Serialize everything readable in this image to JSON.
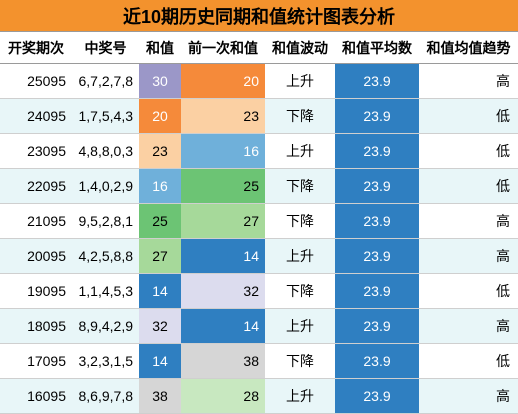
{
  "title": "近10期历史同期和值统计图表分析",
  "headers": [
    "开奖期次",
    "中奖号",
    "和值",
    "前一次和值",
    "和值波动",
    "和值平均数",
    "和值均值趋势"
  ],
  "colors": {
    "title_bg": "#f3922d",
    "avg_bg": "#2f7fc1",
    "stripe_bg": "#e8f6f8"
  },
  "rows": [
    {
      "period": "25095",
      "numbers": "6,7,2,7,8",
      "sum": "30",
      "sum_bg": "#9b97c8",
      "sum_fg": "#ffffff",
      "prev": "20",
      "prev_bg": "#f58a3a",
      "prev_fg": "#ffffff",
      "trend": "上升",
      "avg": "23.9",
      "avg_trend": "高"
    },
    {
      "period": "24095",
      "numbers": "1,7,5,4,3",
      "sum": "20",
      "sum_bg": "#f58a3a",
      "sum_fg": "#ffffff",
      "prev": "23",
      "prev_bg": "#fbd0a3",
      "prev_fg": "#000000",
      "trend": "下降",
      "avg": "23.9",
      "avg_trend": "低"
    },
    {
      "period": "23095",
      "numbers": "4,8,8,0,3",
      "sum": "23",
      "sum_bg": "#fbd0a3",
      "sum_fg": "#000000",
      "prev": "16",
      "prev_bg": "#6fb0da",
      "prev_fg": "#ffffff",
      "trend": "上升",
      "avg": "23.9",
      "avg_trend": "低"
    },
    {
      "period": "22095",
      "numbers": "1,4,0,2,9",
      "sum": "16",
      "sum_bg": "#6fb0da",
      "sum_fg": "#ffffff",
      "prev": "25",
      "prev_bg": "#6cc474",
      "prev_fg": "#000000",
      "trend": "下降",
      "avg": "23.9",
      "avg_trend": "低"
    },
    {
      "period": "21095",
      "numbers": "9,5,2,8,1",
      "sum": "25",
      "sum_bg": "#6cc474",
      "sum_fg": "#000000",
      "prev": "27",
      "prev_bg": "#a6d99a",
      "prev_fg": "#000000",
      "trend": "下降",
      "avg": "23.9",
      "avg_trend": "高"
    },
    {
      "period": "20095",
      "numbers": "4,2,5,8,8",
      "sum": "27",
      "sum_bg": "#a6d99a",
      "sum_fg": "#000000",
      "prev": "14",
      "prev_bg": "#2f7fc1",
      "prev_fg": "#ffffff",
      "trend": "上升",
      "avg": "23.9",
      "avg_trend": "高"
    },
    {
      "period": "19095",
      "numbers": "1,1,4,5,3",
      "sum": "14",
      "sum_bg": "#2f7fc1",
      "sum_fg": "#ffffff",
      "prev": "32",
      "prev_bg": "#dcdcee",
      "prev_fg": "#000000",
      "trend": "下降",
      "avg": "23.9",
      "avg_trend": "低"
    },
    {
      "period": "18095",
      "numbers": "8,9,4,2,9",
      "sum": "32",
      "sum_bg": "#dcdcee",
      "sum_fg": "#000000",
      "prev": "14",
      "prev_bg": "#2f7fc1",
      "prev_fg": "#ffffff",
      "trend": "上升",
      "avg": "23.9",
      "avg_trend": "高"
    },
    {
      "period": "17095",
      "numbers": "3,2,3,1,5",
      "sum": "14",
      "sum_bg": "#2f7fc1",
      "sum_fg": "#ffffff",
      "prev": "38",
      "prev_bg": "#d6d6d6",
      "prev_fg": "#000000",
      "trend": "下降",
      "avg": "23.9",
      "avg_trend": "低"
    },
    {
      "period": "16095",
      "numbers": "8,6,9,7,8",
      "sum": "38",
      "sum_bg": "#d6d6d6",
      "sum_fg": "#000000",
      "prev": "28",
      "prev_bg": "#c8e8c0",
      "prev_fg": "#000000",
      "trend": "上升",
      "avg": "23.9",
      "avg_trend": "高"
    }
  ]
}
